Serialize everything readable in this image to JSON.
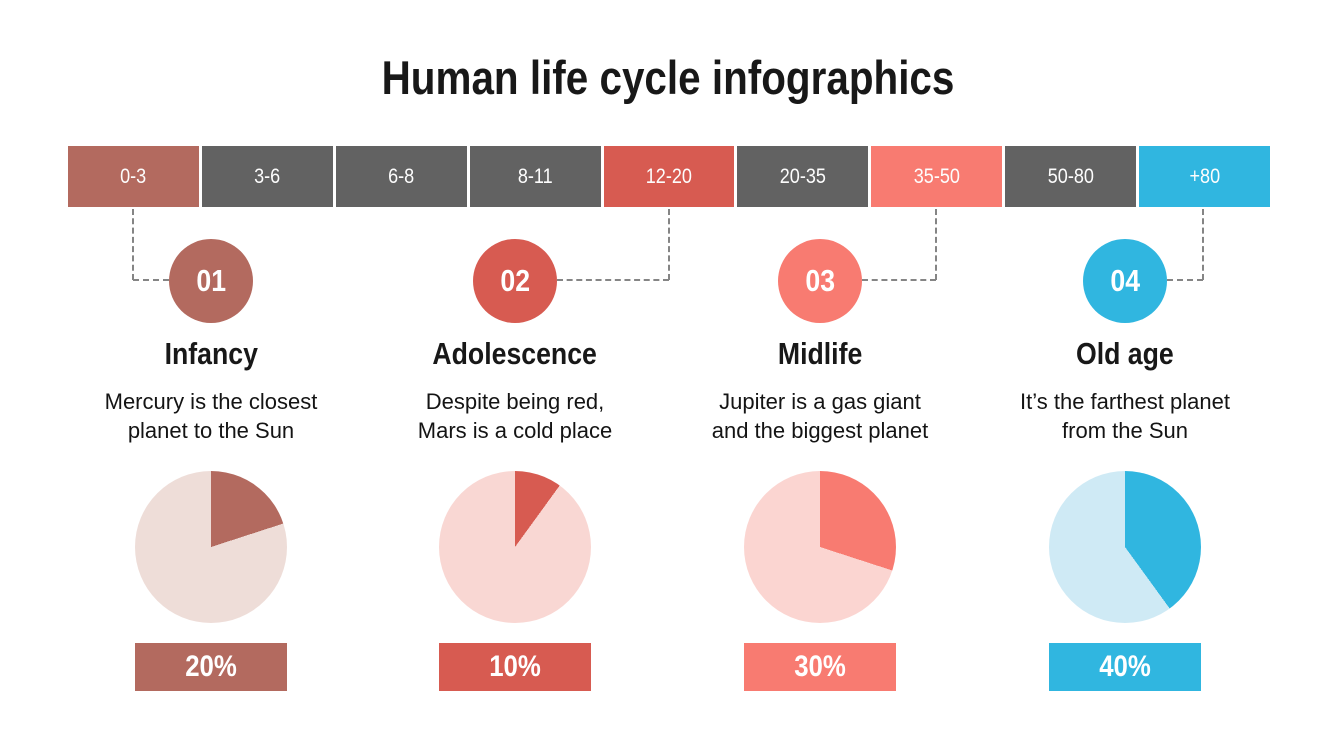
{
  "title": "Human life cycle infographics",
  "timeline": {
    "segments": [
      {
        "label": "0-3",
        "color": "#b36a5f"
      },
      {
        "label": "3-6",
        "color": "#626262"
      },
      {
        "label": "6-8",
        "color": "#626262"
      },
      {
        "label": "8-11",
        "color": "#626262"
      },
      {
        "label": "12-20",
        "color": "#d75b51"
      },
      {
        "label": "20-35",
        "color": "#626262"
      },
      {
        "label": "35-50",
        "color": "#f87b71"
      },
      {
        "label": "50-80",
        "color": "#626262"
      },
      {
        "label": "+80",
        "color": "#30b6e0"
      }
    ]
  },
  "stages": [
    {
      "number": "01",
      "name": "Infancy",
      "age_range": "0-3",
      "lines": [
        "Mercury is the closest",
        "planet to the Sun"
      ],
      "percent": "20%",
      "value": 20,
      "color": "#b36a5f",
      "pie_rest_color": "#eeddd8"
    },
    {
      "number": "02",
      "name": "Adolescence",
      "age_range": "12-20",
      "lines": [
        "Despite being red,",
        "Mars is a cold place"
      ],
      "percent": "10%",
      "value": 10,
      "color": "#d75b51",
      "pie_rest_color": "#f9d7d3"
    },
    {
      "number": "03",
      "name": "Midlife",
      "age_range": "35-50",
      "lines": [
        "Jupiter is a gas giant",
        "and the biggest planet"
      ],
      "percent": "30%",
      "value": 30,
      "color": "#f87b71",
      "pie_rest_color": "#fbd5d1"
    },
    {
      "number": "04",
      "name": "Old age",
      "age_range": "+80",
      "lines": [
        "It’s the farthest planet",
        "from the Sun"
      ],
      "percent": "40%",
      "value": 40,
      "color": "#30b6e0",
      "pie_rest_color": "#cfeaf5"
    }
  ],
  "chart_data": [
    {
      "type": "pie",
      "title": "Infancy",
      "labels": [
        "Infancy",
        "Remainder"
      ],
      "values": [
        20,
        80
      ],
      "colors": [
        "#b36a5f",
        "#eeddd8"
      ],
      "start_angle_deg": 0,
      "direction": "clockwise",
      "data_label": "20%"
    },
    {
      "type": "pie",
      "title": "Adolescence",
      "labels": [
        "Adolescence",
        "Remainder"
      ],
      "values": [
        10,
        90
      ],
      "colors": [
        "#d75b51",
        "#f9d7d3"
      ],
      "start_angle_deg": 0,
      "direction": "clockwise",
      "data_label": "10%"
    },
    {
      "type": "pie",
      "title": "Midlife",
      "labels": [
        "Midlife",
        "Remainder"
      ],
      "values": [
        30,
        70
      ],
      "colors": [
        "#f87b71",
        "#fbd5d1"
      ],
      "start_angle_deg": 0,
      "direction": "clockwise",
      "data_label": "30%"
    },
    {
      "type": "pie",
      "title": "Old age",
      "labels": [
        "Old age",
        "Remainder"
      ],
      "values": [
        40,
        60
      ],
      "colors": [
        "#30b6e0",
        "#cfeaf5"
      ],
      "start_angle_deg": 0,
      "direction": "clockwise",
      "data_label": "40%"
    }
  ]
}
